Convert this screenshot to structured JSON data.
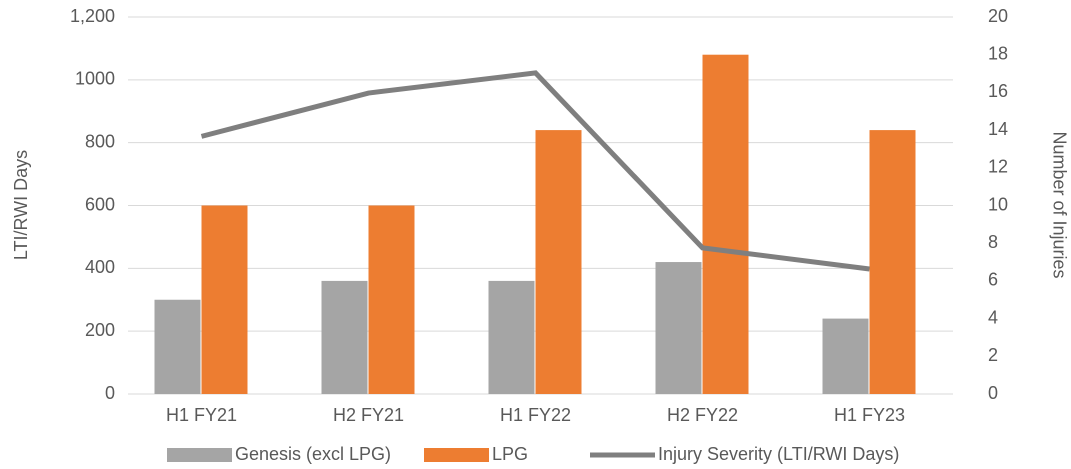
{
  "chart_data": {
    "type": "bar_line",
    "categories": [
      "H1 FY21",
      "H2 FY21",
      "H1 FY22",
      "H2 FY22",
      "H1 FY23"
    ],
    "ylabel": "LTI/RWI Days",
    "y2label": "Number of Injuries",
    "ylim": [
      0,
      1200
    ],
    "yticks": [
      0,
      200,
      400,
      600,
      800,
      1000,
      {
        "value": 1200,
        "label": "1,200"
      }
    ],
    "y2lim": [
      0,
      20
    ],
    "y2ticks": [
      0,
      2,
      4,
      6,
      8,
      10,
      12,
      14,
      16,
      18,
      20
    ],
    "grid": true,
    "legend": "bottom",
    "series": [
      {
        "name": "Genesis (excl LPG)",
        "color": "#a5a5a5",
        "kind": "bar",
        "axis": "y2",
        "values": [
          5,
          6,
          6,
          7,
          4
        ]
      },
      {
        "name": "LPG",
        "color": "#ed7d31",
        "kind": "bar",
        "axis": "y2",
        "values": [
          10,
          10,
          14,
          18,
          14
        ]
      },
      {
        "name": "Injury Severity (LTI/RWI Days)",
        "color": "#7f7f7f",
        "kind": "line",
        "axis": "y",
        "values": [
          820,
          958,
          1022,
          465,
          398
        ]
      }
    ]
  }
}
